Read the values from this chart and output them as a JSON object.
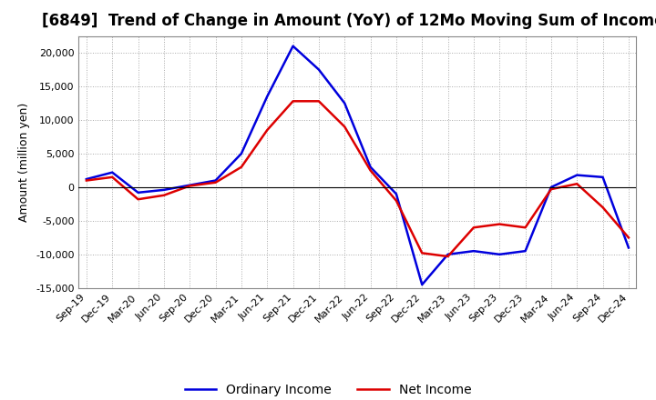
{
  "title": "[6849]  Trend of Change in Amount (YoY) of 12Mo Moving Sum of Incomes",
  "ylabel": "Amount (million yen)",
  "x_labels": [
    "Sep-19",
    "Dec-19",
    "Mar-20",
    "Jun-20",
    "Sep-20",
    "Dec-20",
    "Mar-21",
    "Jun-21",
    "Sep-21",
    "Dec-21",
    "Mar-22",
    "Jun-22",
    "Sep-22",
    "Dec-22",
    "Mar-23",
    "Jun-23",
    "Sep-23",
    "Dec-23",
    "Mar-24",
    "Jun-24",
    "Sep-24",
    "Dec-24"
  ],
  "ordinary_income": [
    1200,
    2200,
    -800,
    -400,
    300,
    1000,
    5000,
    13500,
    21000,
    17500,
    12500,
    3000,
    -1000,
    -14500,
    -10000,
    -9500,
    -10000,
    -9500,
    0,
    1800,
    1500,
    -9000
  ],
  "net_income": [
    1000,
    1500,
    -1800,
    -1200,
    200,
    700,
    3000,
    8500,
    12800,
    12800,
    9000,
    2500,
    -2000,
    -9800,
    -10300,
    -6000,
    -5500,
    -6000,
    -300,
    500,
    -3000,
    -7500
  ],
  "ordinary_color": "#0000dd",
  "net_color": "#dd0000",
  "ylim": [
    -15000,
    22500
  ],
  "yticks": [
    -15000,
    -10000,
    -5000,
    0,
    5000,
    10000,
    15000,
    20000
  ],
  "background_color": "#ffffff",
  "grid_color": "#aaaaaa",
  "title_fontsize": 12,
  "axis_fontsize": 9,
  "tick_fontsize": 8
}
